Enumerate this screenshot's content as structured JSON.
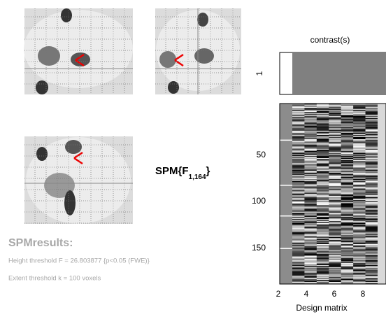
{
  "spm_label": {
    "text": "SPM{F",
    "subscript": "1,164",
    "close": "}"
  },
  "results": {
    "title": "SPMresults:",
    "height_threshold": "Height threshold F = 26.803877  {p<0.05 (FWE)}",
    "extent_threshold": "Extent threshold k = 100 voxels"
  },
  "design_matrix": {
    "title": "contrast(s)",
    "xlabel": "Design matrix",
    "contrast_ticks": [
      "1"
    ],
    "yticks": [
      "50",
      "100",
      "150"
    ],
    "xticks": [
      "2",
      "4",
      "6",
      "8"
    ]
  }
}
